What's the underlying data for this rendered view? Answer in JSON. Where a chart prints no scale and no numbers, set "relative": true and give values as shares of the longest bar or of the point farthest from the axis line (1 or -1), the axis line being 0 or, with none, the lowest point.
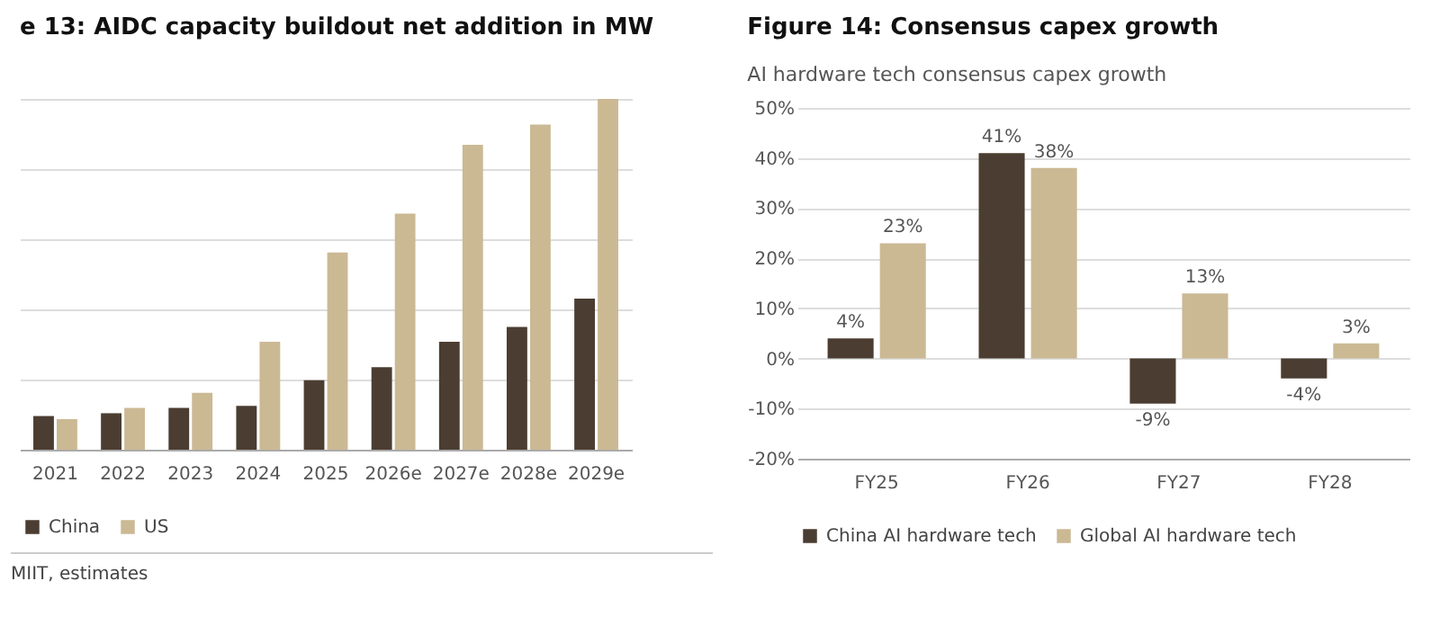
{
  "chart_data": [
    {
      "type": "bar",
      "title": "e 13: AIDC capacity buildout net addition in MW",
      "categories": [
        "2021",
        "2022",
        "2023",
        "2024",
        "2025",
        "2026e",
        "2027e",
        "2028e",
        "2029e"
      ],
      "relative": true,
      "grid": "y",
      "legend": "bottom",
      "annotations": [
        "MIIT, estimates"
      ],
      "series": [
        {
          "name": "China",
          "color": "#4b3d31",
          "values": [
            0.096,
            0.104,
            0.119,
            0.125,
            0.198,
            0.235,
            0.308,
            0.35,
            0.431
          ]
        },
        {
          "name": "US",
          "color": "#cbb994",
          "values": [
            0.087,
            0.119,
            0.162,
            0.308,
            0.562,
            0.673,
            0.869,
            0.927,
            1
          ]
        }
      ]
    },
    {
      "type": "bar",
      "title": "Figure 14: Consensus capex growth",
      "subtitle": "AI hardware tech consensus capex growth",
      "categories": [
        "FY25",
        "FY26",
        "FY27",
        "FY28"
      ],
      "ylim": [
        -20,
        50
      ],
      "yticks": [
        {
          "value": -20,
          "label": "-20%"
        },
        {
          "value": -10,
          "label": "-10%"
        },
        {
          "value": 0,
          "label": "0%"
        },
        {
          "value": 10,
          "label": "10%"
        },
        {
          "value": 20,
          "label": "20%"
        },
        {
          "value": 30,
          "label": "30%"
        },
        {
          "value": 40,
          "label": "40%"
        },
        {
          "value": 50,
          "label": "50%"
        }
      ],
      "grid": "y",
      "legend": "bottom",
      "series": [
        {
          "name": "China AI hardware tech",
          "color": "#4b3d31",
          "values": [
            4,
            41,
            -9,
            -4
          ],
          "value_labels": [
            "4%",
            "41%",
            "-9%",
            "-4%"
          ]
        },
        {
          "name": "Global AI hardware tech",
          "color": "#cbb994",
          "values": [
            23,
            38,
            13,
            3
          ],
          "value_labels": [
            "23%",
            "38%",
            "13%",
            "3%"
          ]
        }
      ]
    }
  ]
}
